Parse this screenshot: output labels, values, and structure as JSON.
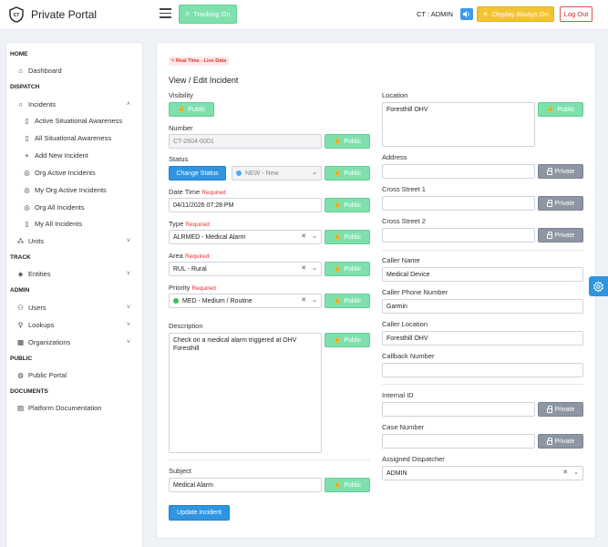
{
  "header": {
    "logo_text": "CT",
    "title": "Private Portal",
    "tracking_label": "Tracking On",
    "user_label": "CT : ADMIN",
    "display_label": "Display Always On",
    "logout_label": "Log Out"
  },
  "sidebar": {
    "sections": {
      "home": "HOME",
      "dispatch": "DISPATCH",
      "track": "TRACK",
      "admin": "ADMIN",
      "public": "PUBLIC",
      "documents": "DOCUMENTS"
    },
    "items": {
      "dashboard": "Dashboard",
      "incidents": "Incidents",
      "active_sa": "Active Situational Awareness",
      "all_sa": "All Situational Awareness",
      "add_new": "Add New Incident",
      "org_active": "Org Active Incidents",
      "my_org_active": "My Org Active Incidents",
      "org_all": "Org All Incidents",
      "my_all": "My All Incidents",
      "units": "Units",
      "entities": "Entities",
      "users": "Users",
      "lookups": "Lookups",
      "organizations": "Organizations",
      "public_portal": "Public Portal",
      "platform_docs": "Platform Documentation"
    }
  },
  "form": {
    "badge": "Real Time - Live Data",
    "title": "View / Edit Incident",
    "public_label": "Public",
    "private_label": "Private",
    "required_label": "Required",
    "visibility": {
      "label": "Visibility"
    },
    "number": {
      "label": "Number",
      "value": "CT-2604-0001"
    },
    "status": {
      "label": "Status",
      "button": "Change Status",
      "value": "NEW - New",
      "dot_color": "#4dabf7"
    },
    "datetime": {
      "label": "Date Time",
      "value": "04/11/2026 07:28 PM"
    },
    "type": {
      "label": "Type",
      "value": "ALRMED - Medical Alarm"
    },
    "area": {
      "label": "Area",
      "value": "RUL - Rural"
    },
    "priority": {
      "label": "Priority",
      "value": "MED - Medium / Routine",
      "dot_color": "#40c057"
    },
    "description": {
      "label": "Description",
      "value": "Check on a medical alarm triggered at OHV Foresthill"
    },
    "subject": {
      "label": "Subject",
      "value": "Medical Alarm"
    },
    "submit": "Update Incident",
    "location": {
      "label": "Location",
      "value": "Foresthill OHV"
    },
    "address": {
      "label": "Address",
      "value": ""
    },
    "cross1": {
      "label": "Cross Street 1",
      "value": ""
    },
    "cross2": {
      "label": "Cross Street 2",
      "value": ""
    },
    "caller_name": {
      "label": "Caller Name",
      "value": "Medical Device"
    },
    "caller_phone": {
      "label": "Caller Phone Number",
      "value": "Garmin"
    },
    "caller_location": {
      "label": "Caller Location",
      "value": "Foresthill OHV"
    },
    "callback": {
      "label": "Callback Number",
      "value": ""
    },
    "internal_id": {
      "label": "Internal ID",
      "value": ""
    },
    "case_number": {
      "label": "Case Number",
      "value": ""
    },
    "dispatcher": {
      "label": "Assigned Dispatcher",
      "value": "ADMIN"
    }
  },
  "colors": {
    "accent": "#2f95e0",
    "public_green": "#7ee0ad",
    "private_gray": "#8d96a3",
    "warning": "#f4c430",
    "danger": "#e03131"
  }
}
